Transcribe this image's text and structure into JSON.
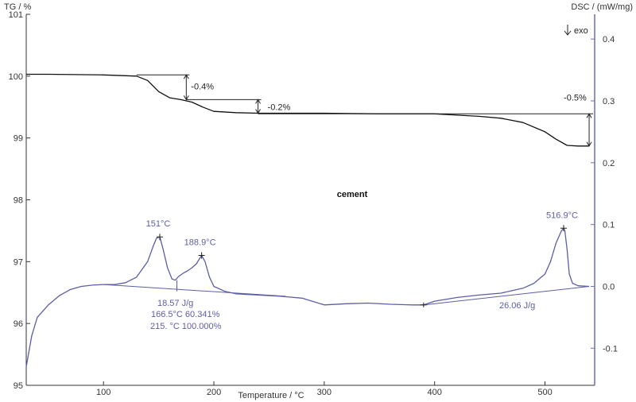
{
  "chart_data": {
    "type": "line",
    "title": "cement",
    "xlabel": "Temperature / °C",
    "ylabel_left": "TG / %",
    "ylabel_right": "DSC / (mW/mg)",
    "exo_label": "exo",
    "x_ticks": [
      "100",
      "200",
      "300",
      "400",
      "500"
    ],
    "y_left_ticks": [
      "101",
      "100",
      "99",
      "98",
      "97",
      "96",
      "95"
    ],
    "y_right_ticks": [
      "0.4",
      "0.3",
      "0.2",
      "0.1",
      "0.0",
      "-0.1"
    ],
    "xlim": [
      30,
      545
    ],
    "ylim_left": [
      95,
      101
    ],
    "ylim_right": [
      -0.16,
      0.44
    ],
    "colors": {
      "tg": "#111111",
      "dsc": "#5b5ea6",
      "axis": "#333333",
      "right_axis": "#6b6fb0"
    },
    "series": [
      {
        "axis": "left",
        "x": [
          30,
          50,
          100,
          130,
          140,
          150,
          160,
          170,
          180,
          190,
          200,
          220,
          240,
          300,
          350,
          400,
          420,
          440,
          460,
          480,
          500,
          510,
          520,
          530,
          540
        ],
        "y": [
          100.03,
          100.03,
          100.02,
          100.0,
          99.93,
          99.75,
          99.65,
          99.62,
          99.58,
          99.5,
          99.43,
          99.41,
          99.4,
          99.4,
          99.39,
          99.39,
          99.37,
          99.35,
          99.32,
          99.25,
          99.1,
          98.98,
          98.88,
          98.87,
          98.87
        ]
      },
      {
        "axis": "right",
        "x": [
          30,
          35,
          40,
          50,
          60,
          70,
          80,
          90,
          100,
          110,
          120,
          130,
          140,
          145,
          148,
          151,
          154,
          158,
          162,
          165,
          168,
          172,
          176,
          180,
          184,
          188.9,
          192,
          196,
          200,
          210,
          220,
          240,
          260,
          280,
          300,
          320,
          340,
          360,
          380,
          390,
          400,
          420,
          440,
          460,
          480,
          490,
          500,
          505,
          510,
          515,
          516.9,
          518,
          520,
          522,
          525,
          530,
          540
        ],
        "y": [
          -0.13,
          -0.08,
          -0.05,
          -0.03,
          -0.015,
          -0.005,
          0.0,
          0.002,
          0.003,
          0.003,
          0.006,
          0.015,
          0.04,
          0.065,
          0.078,
          0.08,
          0.06,
          0.03,
          0.012,
          0.01,
          0.016,
          0.021,
          0.025,
          0.03,
          0.036,
          0.05,
          0.04,
          0.015,
          0.0,
          -0.008,
          -0.012,
          -0.014,
          -0.016,
          -0.019,
          -0.03,
          -0.028,
          -0.027,
          -0.029,
          -0.03,
          -0.03,
          -0.024,
          -0.018,
          -0.014,
          -0.011,
          -0.003,
          0.005,
          0.02,
          0.04,
          0.07,
          0.09,
          0.094,
          0.09,
          0.06,
          0.02,
          0.005,
          0.001,
          0.0
        ]
      }
    ],
    "tg_annotations": [
      {
        "text": "-0.4%",
        "x": 175,
        "y_from": 100.02,
        "y_to": 99.62
      },
      {
        "text": "-0.2%",
        "x": 240,
        "y_from": 99.62,
        "y_to": 99.4
      },
      {
        "text": "-0.5%",
        "x": 540,
        "y_from": 99.39,
        "y_to": 98.87
      }
    ],
    "dsc_peaks": [
      {
        "text": "151°C",
        "x": 151,
        "y": 0.08
      },
      {
        "text": "188.9°C",
        "x": 188.9,
        "y": 0.05
      },
      {
        "text": "516.9°C",
        "x": 516.9,
        "y": 0.094
      }
    ],
    "dsc_baselines": [
      {
        "x": [
          100,
          265
        ],
        "y": [
          0.003,
          -0.016
        ]
      },
      {
        "x": [
          390,
          540
        ],
        "y": [
          -0.03,
          0.0
        ]
      }
    ],
    "dsc_integration_labels": [
      "18.57 J/g",
      "166.5°C 60.341%",
      "215. °C 100.000%",
      "26.06 J/g"
    ]
  }
}
